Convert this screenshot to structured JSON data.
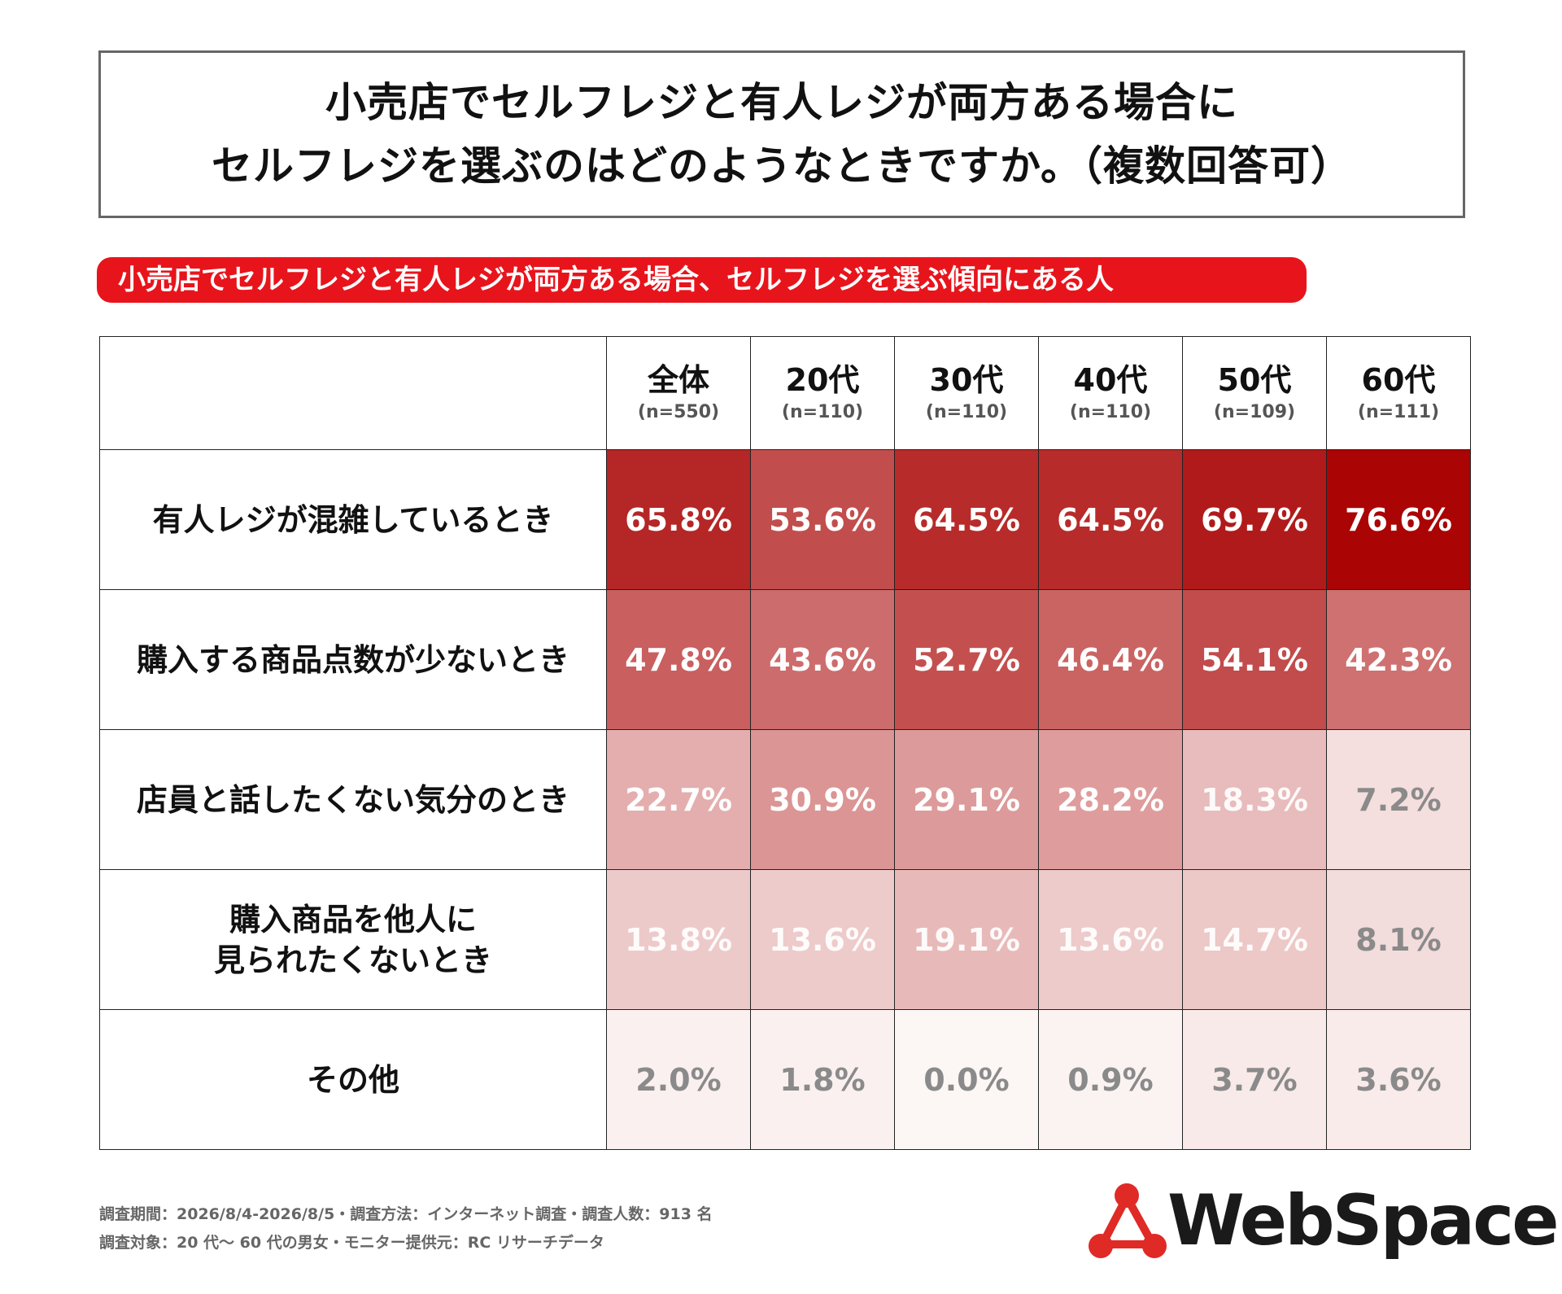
{
  "title": {
    "line1": "小売店でセルフレジと有人レジが両方ある場合に",
    "line2": "セルフレジを選ぶのはどのようなときですか。（複数回答可）"
  },
  "subtitle": "小売店でセルフレジと有人レジが両方ある場合、セルフレジを選ぶ傾向にある人",
  "chart_data": {
    "type": "table",
    "columns": [
      {
        "label": "全体",
        "n": "(n=550)"
      },
      {
        "label": "20代",
        "n": "(n=110)"
      },
      {
        "label": "30代",
        "n": "(n=110)"
      },
      {
        "label": "40代",
        "n": "(n=110)"
      },
      {
        "label": "50代",
        "n": "(n=109)"
      },
      {
        "label": "60代",
        "n": "(n=111)"
      }
    ],
    "rows": [
      {
        "label": [
          "有人レジが混雑しているとき"
        ],
        "values": [
          65.8,
          53.6,
          64.5,
          64.5,
          69.7,
          76.6
        ]
      },
      {
        "label": [
          "購入する商品点数が少ないとき"
        ],
        "values": [
          47.8,
          43.6,
          52.7,
          46.4,
          54.1,
          42.3
        ]
      },
      {
        "label": [
          "店員と話したくない気分のとき"
        ],
        "values": [
          22.7,
          30.9,
          29.1,
          28.2,
          18.3,
          7.2
        ]
      },
      {
        "label": [
          "購入商品を他人に",
          "見られたくないとき"
        ],
        "values": [
          13.8,
          13.6,
          19.1,
          13.6,
          14.7,
          8.1
        ]
      },
      {
        "label": [
          "その他"
        ],
        "values": [
          2.0,
          1.8,
          0.0,
          0.9,
          3.7,
          3.6
        ]
      }
    ],
    "unit": "%"
  },
  "footer": {
    "line1": "調査期間：2026/8/4-2026/8/5・調査方法：インターネット調査・調査人数：913 名",
    "line2": "調査対象：20 代～ 60 代の男女・モニター提供元：RC リサーチデータ"
  },
  "logo": {
    "text": "WebSpace",
    "color": "#e02a26"
  },
  "colors": {
    "accent": "#e8141c",
    "heat_max": "#a80000",
    "heat_min": "#ffffff"
  }
}
